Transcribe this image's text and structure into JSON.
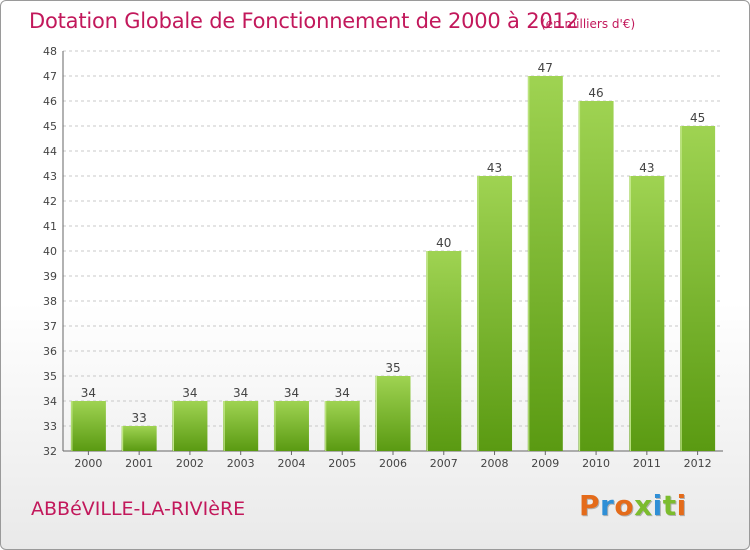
{
  "header": {
    "title": "Dotation Globale de Fonctionnement de 2000 à 2012",
    "unit": "(en milliers d'€)"
  },
  "footer": {
    "commune": "ABBéVILLE-LA-RIVIèRE",
    "logo_text": "Proxiti"
  },
  "colors": {
    "title": "#c2185b",
    "bar_light": "#9fd352",
    "bar_dark": "#5a9a12",
    "grid": "#c8c8c8",
    "logo_letters": [
      "#e46b1a",
      "#2f8fd6",
      "#e46b1a",
      "#7cbc2e",
      "#2f8fd6",
      "#7cbc2e",
      "#e46b1a"
    ]
  },
  "chart_data": {
    "type": "bar",
    "categories": [
      "2000",
      "2001",
      "2002",
      "2003",
      "2004",
      "2005",
      "2006",
      "2007",
      "2008",
      "2009",
      "2010",
      "2011",
      "2012"
    ],
    "values": [
      34,
      33,
      34,
      34,
      34,
      34,
      35,
      40,
      43,
      47,
      46,
      43,
      45
    ],
    "title": "Dotation Globale de Fonctionnement de 2000 à 2012",
    "subtitle": "(en milliers d'€)",
    "xlabel": "",
    "ylabel": "",
    "ylim": [
      32,
      48
    ],
    "yticks": [
      32,
      33,
      34,
      35,
      36,
      37,
      38,
      39,
      40,
      41,
      42,
      43,
      44,
      45,
      46,
      47,
      48
    ],
    "grid": true,
    "data_labels": true,
    "legend": "none"
  }
}
